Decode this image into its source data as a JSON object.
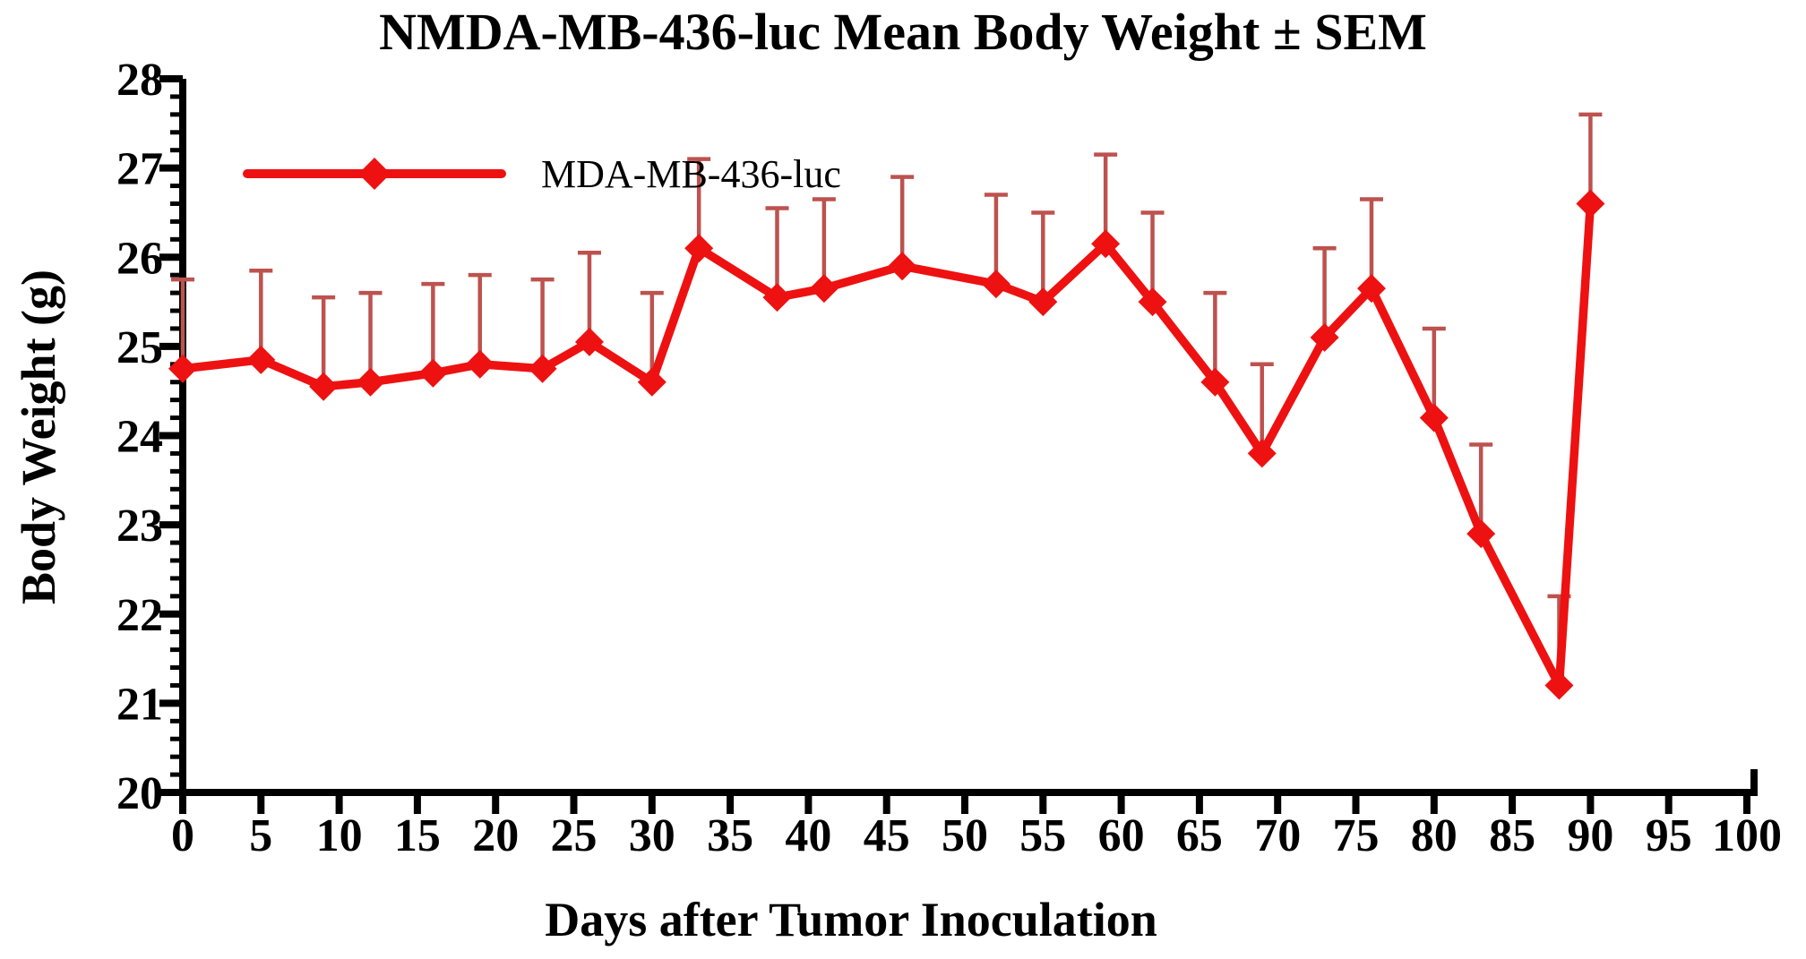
{
  "title": "NMDA-MB-436-luc Mean Body Weight ± SEM",
  "x_axis": {
    "label": "Days after Tumor Inoculation"
  },
  "y_axis": {
    "label": "Body Weight (g)"
  },
  "legend": {
    "series_label": "MDA-MB-436-luc"
  },
  "colors": {
    "line": "#ee1111",
    "error_bar": "#bd524e",
    "axis": "#000000",
    "text": "#000000"
  },
  "chart_data": {
    "type": "line",
    "title": "NMDA-MB-436-luc Mean Body Weight ± SEM",
    "xlabel": "Days after Tumor Inoculation",
    "ylabel": "Body Weight (g)",
    "xlim": [
      0,
      100
    ],
    "xtick_step": 5,
    "ylim": [
      20,
      28
    ],
    "ytick_step": 1,
    "y_minor_tick_step": 0.2,
    "grid": false,
    "legend_position": "upper-left-inside",
    "error_bars": "SEM, upward only, capped",
    "series": [
      {
        "name": "MDA-MB-436-luc",
        "color": "#ee1111",
        "error_bar_color": "#bd524e",
        "marker": "diamond",
        "x": [
          0,
          5,
          9,
          12,
          16,
          19,
          23,
          26,
          30,
          33,
          38,
          41,
          46,
          52,
          55,
          59,
          62,
          66,
          69,
          73,
          76,
          80,
          83,
          88,
          90
        ],
        "y": [
          24.75,
          24.85,
          24.55,
          24.6,
          24.7,
          24.8,
          24.75,
          25.05,
          24.6,
          26.1,
          25.55,
          25.65,
          25.9,
          25.7,
          25.5,
          26.15,
          25.5,
          24.6,
          23.8,
          25.1,
          25.65,
          24.2,
          22.9,
          21.2,
          26.6
        ],
        "sem": [
          1.0,
          1.0,
          1.0,
          1.0,
          1.0,
          1.0,
          1.0,
          1.0,
          1.0,
          1.0,
          1.0,
          1.0,
          1.0,
          1.0,
          1.0,
          1.0,
          1.0,
          1.0,
          1.0,
          1.0,
          1.0,
          1.0,
          1.0,
          1.0,
          1.0
        ]
      }
    ]
  }
}
